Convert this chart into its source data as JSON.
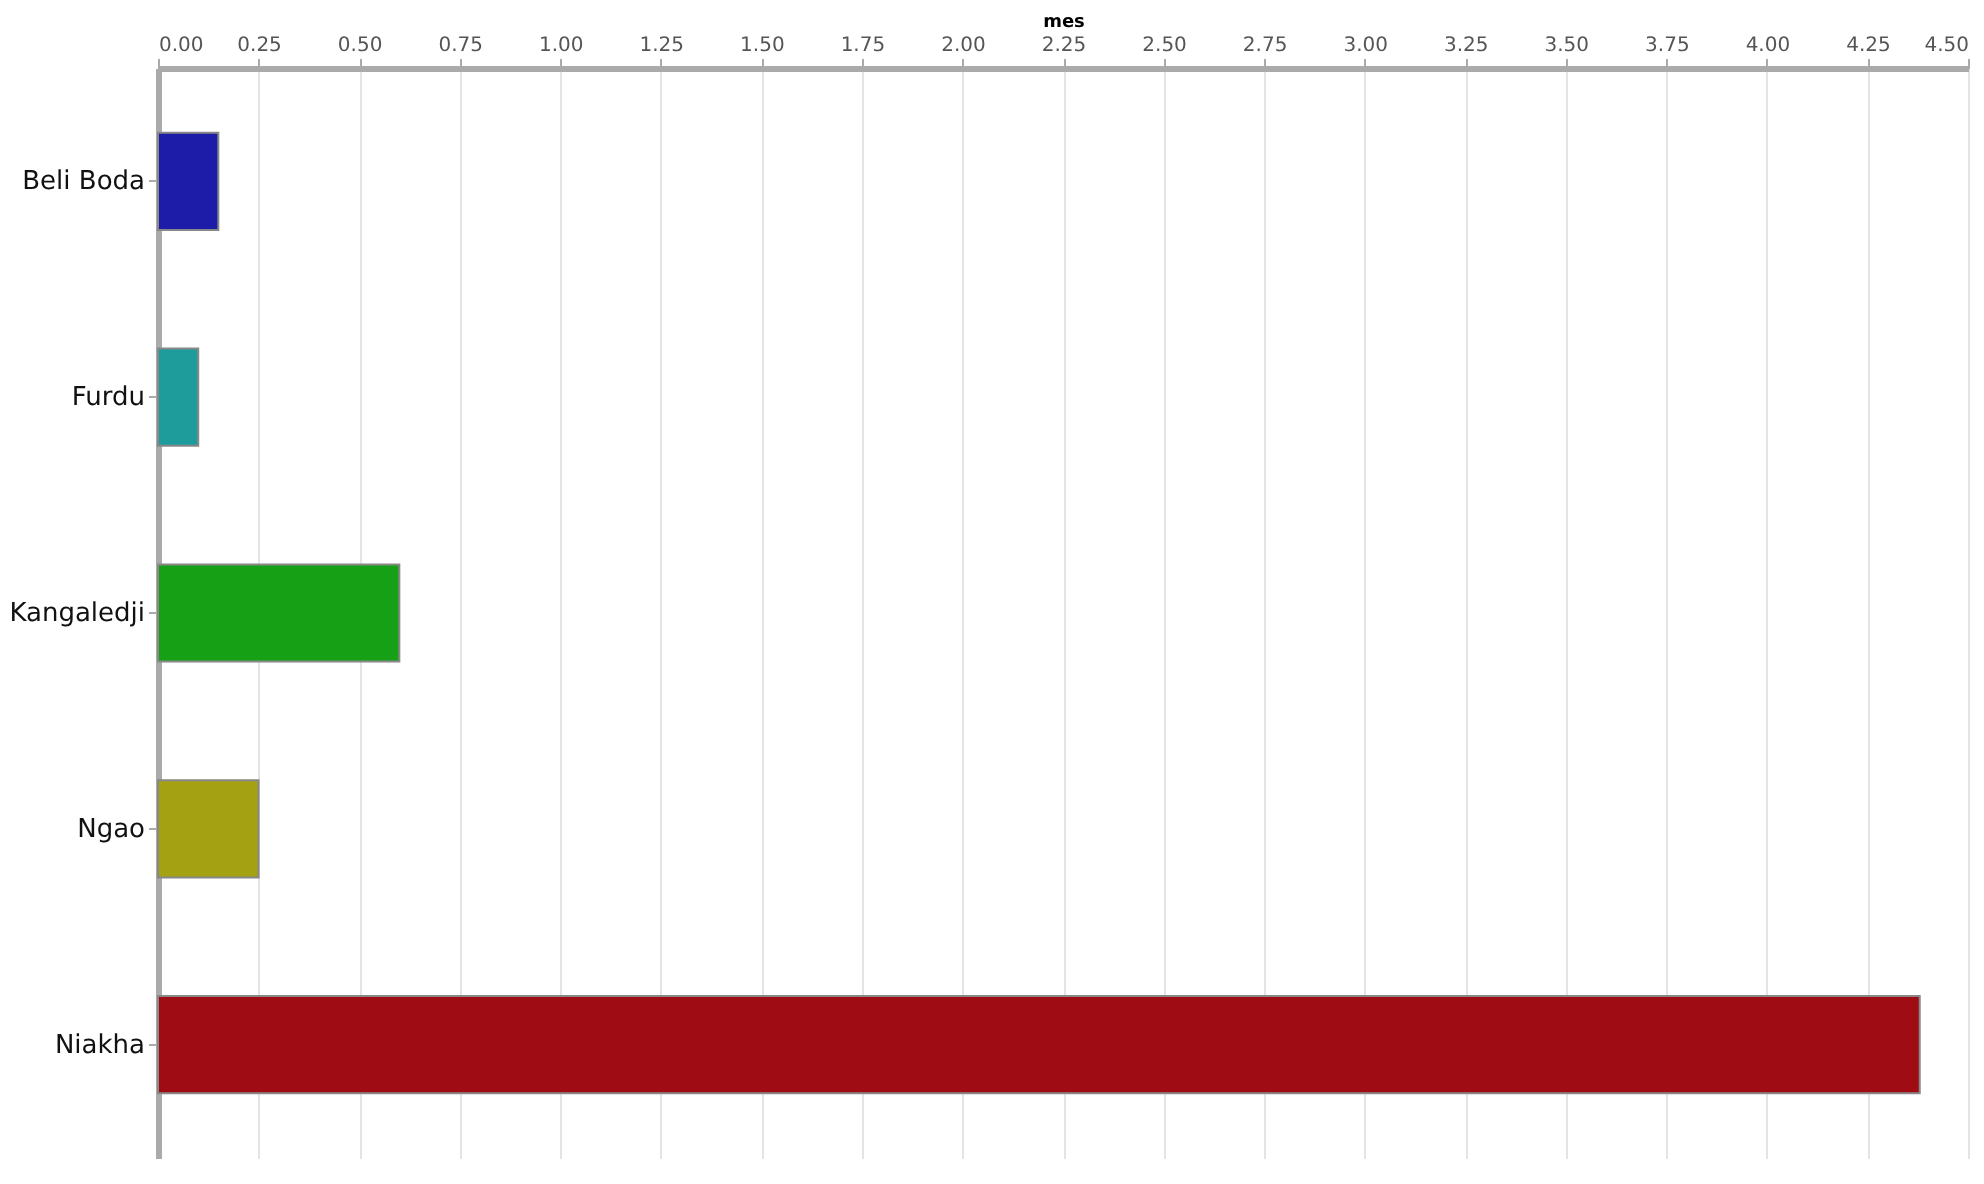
{
  "chart_data": {
    "type": "bar",
    "orientation": "horizontal",
    "xlabel": "mes",
    "categories": [
      "Beli Boda",
      "Furdu",
      "Kangaledji",
      "Ngao",
      "Niakha"
    ],
    "values": [
      0.15,
      0.1,
      0.6,
      0.25,
      4.38
    ],
    "colors": [
      "#1c1ca8",
      "#1e9c9c",
      "#16a016",
      "#a4a212",
      "#a00c14"
    ],
    "xlim": [
      0,
      4.5
    ],
    "xticks": [
      {
        "value": 0,
        "label": "0.00"
      },
      {
        "value": 0.25,
        "label": "0.25"
      },
      {
        "value": 0.5,
        "label": "0.50"
      },
      {
        "value": 0.75,
        "label": "0.75"
      },
      {
        "value": 1,
        "label": "1.00"
      },
      {
        "value": 1.25,
        "label": "1.25"
      },
      {
        "value": 1.5,
        "label": "1.50"
      },
      {
        "value": 1.75,
        "label": "1.75"
      },
      {
        "value": 2,
        "label": "2.00"
      },
      {
        "value": 2.25,
        "label": "2.25"
      },
      {
        "value": 2.5,
        "label": "2.50"
      },
      {
        "value": 2.75,
        "label": "2.75"
      },
      {
        "value": 3,
        "label": "3.00"
      },
      {
        "value": 3.25,
        "label": "3.25"
      },
      {
        "value": 3.5,
        "label": "3.50"
      },
      {
        "value": 3.75,
        "label": "3.75"
      },
      {
        "value": 4,
        "label": "4.00"
      },
      {
        "value": 4.25,
        "label": "4.25"
      },
      {
        "value": 4.5,
        "label": "4.50"
      }
    ],
    "grid": "x",
    "legend": false
  }
}
